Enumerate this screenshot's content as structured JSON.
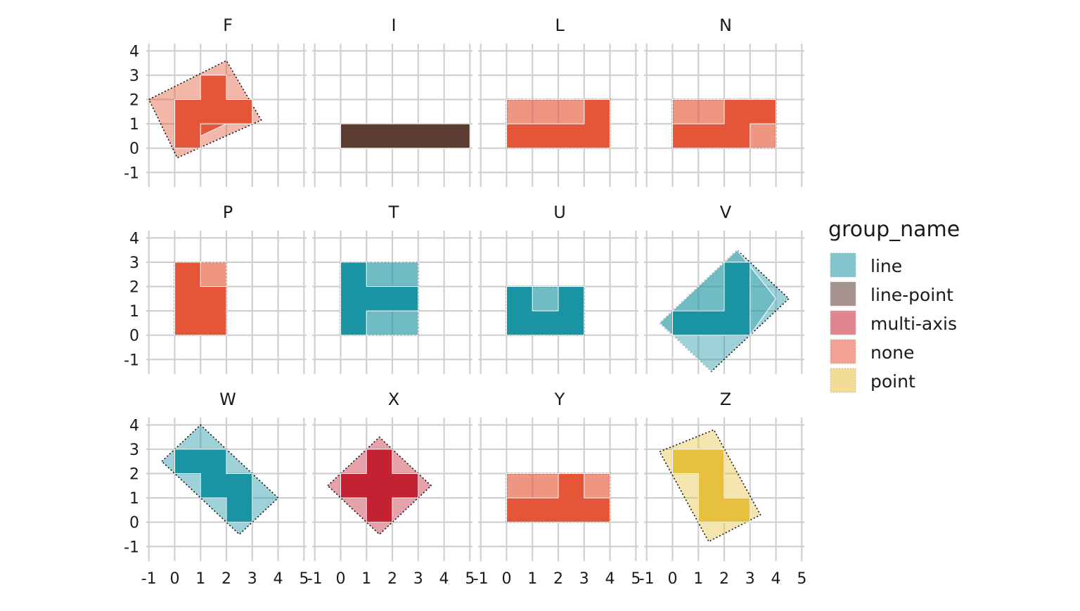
{
  "chart_data": {
    "type": "faceted-polygon",
    "x_ticks": [
      -1,
      0,
      1,
      2,
      3,
      4,
      5
    ],
    "y_ticks": [
      -1,
      0,
      1,
      2,
      3,
      4
    ],
    "xlim": [
      -1.1,
      5.1
    ],
    "ylim": [
      -1.6,
      4.3
    ],
    "legend": {
      "title": "group_name",
      "placement": "right",
      "items": [
        {
          "name": "line",
          "color": "#1a94a3"
        },
        {
          "name": "line-point",
          "color": "#5c3b30"
        },
        {
          "name": "multi-axis",
          "color": "#c42233"
        },
        {
          "name": "none",
          "color": "#e55538"
        },
        {
          "name": "point",
          "color": "#e8c040"
        }
      ]
    },
    "panels": [
      {
        "label": "F",
        "group": "none",
        "hull": [
          [
            -1,
            2
          ],
          [
            2,
            3.6
          ],
          [
            3.35,
            1.15
          ],
          [
            0.1,
            -0.4
          ]
        ],
        "light": [
          [
            [
              0,
              0
            ],
            [
              1,
              0
            ],
            [
              1,
              1
            ],
            [
              0,
              1
            ]
          ],
          [
            [
              0,
              1
            ],
            [
              1,
              1
            ],
            [
              1,
              2
            ],
            [
              0,
              2
            ]
          ],
          [
            [
              1,
              1
            ],
            [
              2,
              1
            ],
            [
              2,
              2
            ],
            [
              1,
              2
            ]
          ],
          [
            [
              1,
              2
            ],
            [
              2,
              2
            ],
            [
              2,
              3
            ],
            [
              1,
              3
            ]
          ],
          [
            [
              2,
              2
            ],
            [
              3,
              2
            ],
            [
              3,
              1
            ],
            [
              2,
              1
            ]
          ]
        ],
        "dark": [
          [
            [
              0,
              0
            ],
            [
              1,
              0
            ],
            [
              1,
              1
            ],
            [
              2,
              1
            ],
            [
              2,
              2
            ],
            [
              3,
              2
            ],
            [
              3,
              1
            ],
            [
              2,
              1
            ]
          ],
          [
            [
              0,
              0
            ],
            [
              0,
              2
            ],
            [
              1,
              2
            ],
            [
              1,
              3
            ],
            [
              2,
              3
            ],
            [
              2,
              2
            ],
            [
              3,
              2
            ],
            [
              3,
              1
            ],
            [
              1,
              1
            ],
            [
              1,
              0
            ]
          ]
        ]
      },
      {
        "label": "I",
        "group": "line-point",
        "hull": [],
        "light": [],
        "dark": [
          [
            [
              0,
              0
            ],
            [
              5,
              0
            ],
            [
              5,
              1
            ],
            [
              0,
              1
            ]
          ]
        ]
      },
      {
        "label": "L",
        "group": "none",
        "hull": [
          [
            0,
            0
          ],
          [
            4,
            0
          ],
          [
            4,
            2
          ],
          [
            0,
            2
          ]
        ],
        "light": [
          [
            [
              0,
              1
            ],
            [
              3,
              1
            ],
            [
              3,
              2
            ],
            [
              0,
              2
            ]
          ]
        ],
        "dark": [
          [
            [
              0,
              0
            ],
            [
              4,
              0
            ],
            [
              4,
              2
            ],
            [
              3,
              2
            ],
            [
              3,
              1
            ],
            [
              0,
              1
            ]
          ]
        ]
      },
      {
        "label": "N",
        "group": "none",
        "hull": [
          [
            0,
            0
          ],
          [
            4,
            0
          ],
          [
            4,
            2
          ],
          [
            0,
            2
          ]
        ],
        "light": [
          [
            [
              0,
              1
            ],
            [
              2,
              1
            ],
            [
              2,
              2
            ],
            [
              0,
              2
            ]
          ],
          [
            [
              3,
              0
            ],
            [
              4,
              0
            ],
            [
              4,
              1
            ],
            [
              3,
              1
            ]
          ]
        ],
        "dark": [
          [
            [
              0,
              0
            ],
            [
              3,
              0
            ],
            [
              3,
              1
            ],
            [
              4,
              1
            ],
            [
              4,
              2
            ],
            [
              2,
              2
            ],
            [
              2,
              1
            ],
            [
              0,
              1
            ]
          ]
        ]
      },
      {
        "label": "P",
        "group": "none",
        "hull": [
          [
            0,
            0
          ],
          [
            2,
            0
          ],
          [
            2,
            3
          ],
          [
            0,
            3
          ]
        ],
        "light": [
          [
            [
              1,
              2
            ],
            [
              2,
              2
            ],
            [
              2,
              3
            ],
            [
              1,
              3
            ]
          ]
        ],
        "dark": [
          [
            [
              0,
              0
            ],
            [
              2,
              0
            ],
            [
              2,
              2
            ],
            [
              1,
              2
            ],
            [
              1,
              3
            ],
            [
              0,
              3
            ]
          ]
        ]
      },
      {
        "label": "T",
        "group": "line",
        "hull": [
          [
            0,
            0
          ],
          [
            3,
            0
          ],
          [
            3,
            3
          ],
          [
            0,
            3
          ]
        ],
        "light": [
          [
            [
              1,
              2
            ],
            [
              3,
              2
            ],
            [
              3,
              3
            ],
            [
              1,
              3
            ]
          ],
          [
            [
              1,
              0
            ],
            [
              3,
              0
            ],
            [
              3,
              1
            ],
            [
              1,
              1
            ]
          ]
        ],
        "dark": [
          [
            [
              0,
              0
            ],
            [
              1,
              0
            ],
            [
              1,
              1
            ],
            [
              3,
              1
            ],
            [
              3,
              2
            ],
            [
              1,
              2
            ],
            [
              1,
              3
            ],
            [
              0,
              3
            ]
          ]
        ]
      },
      {
        "label": "U",
        "group": "line",
        "hull": [
          [
            0,
            0
          ],
          [
            3,
            0
          ],
          [
            3,
            2
          ],
          [
            0,
            2
          ]
        ],
        "light": [
          [
            [
              1,
              1
            ],
            [
              2,
              1
            ],
            [
              2,
              2
            ],
            [
              1,
              2
            ]
          ]
        ],
        "dark": [
          [
            [
              0,
              0
            ],
            [
              3,
              0
            ],
            [
              3,
              2
            ],
            [
              2,
              2
            ],
            [
              2,
              1
            ],
            [
              1,
              1
            ],
            [
              1,
              2
            ],
            [
              0,
              2
            ]
          ]
        ]
      },
      {
        "label": "V",
        "group": "line",
        "hull": [
          [
            -0.5,
            0.5
          ],
          [
            1.5,
            -1.5
          ],
          [
            4.5,
            1.5
          ],
          [
            2.5,
            3.5
          ]
        ],
        "light": [
          [
            [
              0,
              0
            ],
            [
              2,
              0
            ],
            [
              2,
              3
            ],
            [
              3,
              3
            ],
            [
              3,
              0
            ],
            [
              4,
              1.5
            ],
            [
              2.5,
              3.5
            ],
            [
              -0.5,
              0.5
            ],
            [
              1.5,
              -1.5
            ]
          ]
        ],
        "dark": [
          [
            [
              0,
              0
            ],
            [
              3,
              0
            ],
            [
              3,
              3
            ],
            [
              2,
              3
            ],
            [
              2,
              1
            ],
            [
              0,
              1
            ]
          ]
        ]
      },
      {
        "label": "W",
        "group": "line",
        "hull": [
          [
            -0.5,
            2.5
          ],
          [
            1,
            4
          ],
          [
            4,
            1
          ],
          [
            2.5,
            -0.5
          ]
        ],
        "light": [],
        "dark": [
          [
            [
              0,
              2
            ],
            [
              0,
              3
            ],
            [
              2,
              3
            ],
            [
              2,
              2
            ],
            [
              3,
              2
            ],
            [
              3,
              0
            ],
            [
              2,
              0
            ],
            [
              2,
              1
            ],
            [
              1,
              1
            ],
            [
              1,
              2
            ]
          ]
        ]
      },
      {
        "label": "X",
        "group": "multi-axis",
        "hull": [
          [
            -0.5,
            1.5
          ],
          [
            1.5,
            3.5
          ],
          [
            3.5,
            1.5
          ],
          [
            1.5,
            -0.5
          ]
        ],
        "light": [],
        "dark": [
          [
            [
              1,
              0
            ],
            [
              2,
              0
            ],
            [
              2,
              1
            ],
            [
              3,
              1
            ],
            [
              3,
              2
            ],
            [
              2,
              2
            ],
            [
              2,
              3
            ],
            [
              1,
              3
            ],
            [
              1,
              2
            ],
            [
              0,
              2
            ],
            [
              0,
              1
            ],
            [
              1,
              1
            ]
          ]
        ]
      },
      {
        "label": "Y",
        "group": "none",
        "hull": [
          [
            0,
            0
          ],
          [
            4,
            0
          ],
          [
            4,
            2
          ],
          [
            0,
            2
          ]
        ],
        "light": [
          [
            [
              0,
              1
            ],
            [
              2,
              1
            ],
            [
              2,
              2
            ],
            [
              0,
              2
            ]
          ],
          [
            [
              3,
              1
            ],
            [
              4,
              1
            ],
            [
              4,
              2
            ],
            [
              3,
              2
            ]
          ]
        ],
        "dark": [
          [
            [
              0,
              0
            ],
            [
              4,
              0
            ],
            [
              4,
              1
            ],
            [
              3,
              1
            ],
            [
              3,
              2
            ],
            [
              2,
              2
            ],
            [
              2,
              1
            ],
            [
              0,
              1
            ]
          ]
        ]
      },
      {
        "label": "Z",
        "group": "point",
        "hull": [
          [
            -0.5,
            2.9
          ],
          [
            1.6,
            3.8
          ],
          [
            3.4,
            0.3
          ],
          [
            1.4,
            -0.8
          ]
        ],
        "light": [],
        "dark": [
          [
            [
              0,
              3
            ],
            [
              2,
              3
            ],
            [
              2,
              1
            ],
            [
              3,
              1
            ],
            [
              3,
              0
            ],
            [
              1,
              0
            ],
            [
              1,
              2
            ],
            [
              0,
              2
            ]
          ]
        ]
      }
    ]
  }
}
